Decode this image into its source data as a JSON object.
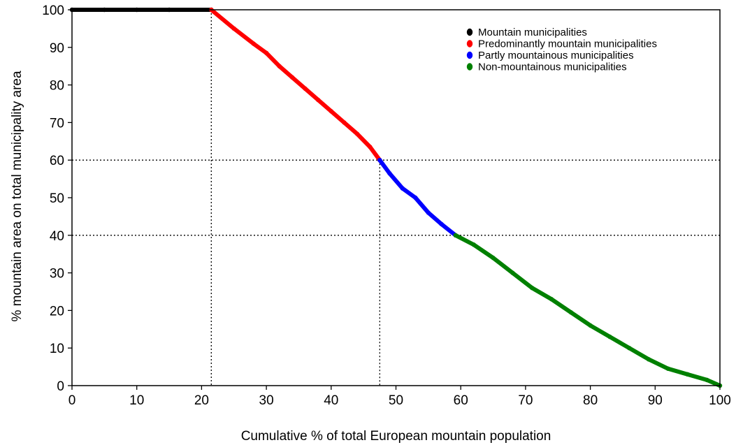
{
  "chart_data": {
    "type": "scatter",
    "xlabel": "Cumulative % of total European mountain population",
    "ylabel": "% mountain area on total municipality area",
    "xlim": [
      0,
      100
    ],
    "ylim": [
      0,
      100
    ],
    "xticks": [
      0,
      10,
      20,
      30,
      40,
      50,
      60,
      70,
      80,
      90,
      100
    ],
    "yticks": [
      0,
      10,
      20,
      30,
      40,
      50,
      60,
      70,
      80,
      90,
      100
    ],
    "grid": false,
    "legend_position": "top-right",
    "reference_lines": [
      {
        "orientation": "vertical",
        "x": 21.5,
        "y_to": 100
      },
      {
        "orientation": "vertical",
        "x": 47.5,
        "y_to": 60
      },
      {
        "orientation": "horizontal",
        "y": 60
      },
      {
        "orientation": "horizontal",
        "y": 40
      }
    ],
    "series": [
      {
        "name": "Mountain municipalities",
        "color": "#000000",
        "x": [
          0,
          5,
          10,
          15,
          21.5
        ],
        "y": [
          100,
          100,
          100,
          100,
          100
        ]
      },
      {
        "name": "Predominantly mountain municipalities",
        "color": "#ff0000",
        "x": [
          21.5,
          25,
          28,
          30,
          32,
          34,
          36,
          38,
          40,
          42,
          44,
          46,
          47.5
        ],
        "y": [
          100,
          95,
          91,
          88.5,
          85,
          82,
          79,
          76,
          73,
          70,
          67,
          63.5,
          60
        ]
      },
      {
        "name": "Partly mountainous municipalities",
        "color": "#0000ff",
        "x": [
          47.5,
          49,
          51,
          53,
          55,
          57,
          59.2
        ],
        "y": [
          60,
          56.5,
          52.5,
          50,
          46,
          43,
          40
        ]
      },
      {
        "name": "Non-mountainous municipalities",
        "color": "#008000",
        "x": [
          59.2,
          62,
          65,
          68,
          71,
          74,
          77,
          80,
          83,
          86,
          89,
          92,
          95,
          98,
          100
        ],
        "y": [
          40,
          37.5,
          34,
          30,
          26,
          23,
          19.5,
          16,
          13,
          10,
          7,
          4.5,
          3,
          1.5,
          0
        ]
      }
    ]
  }
}
